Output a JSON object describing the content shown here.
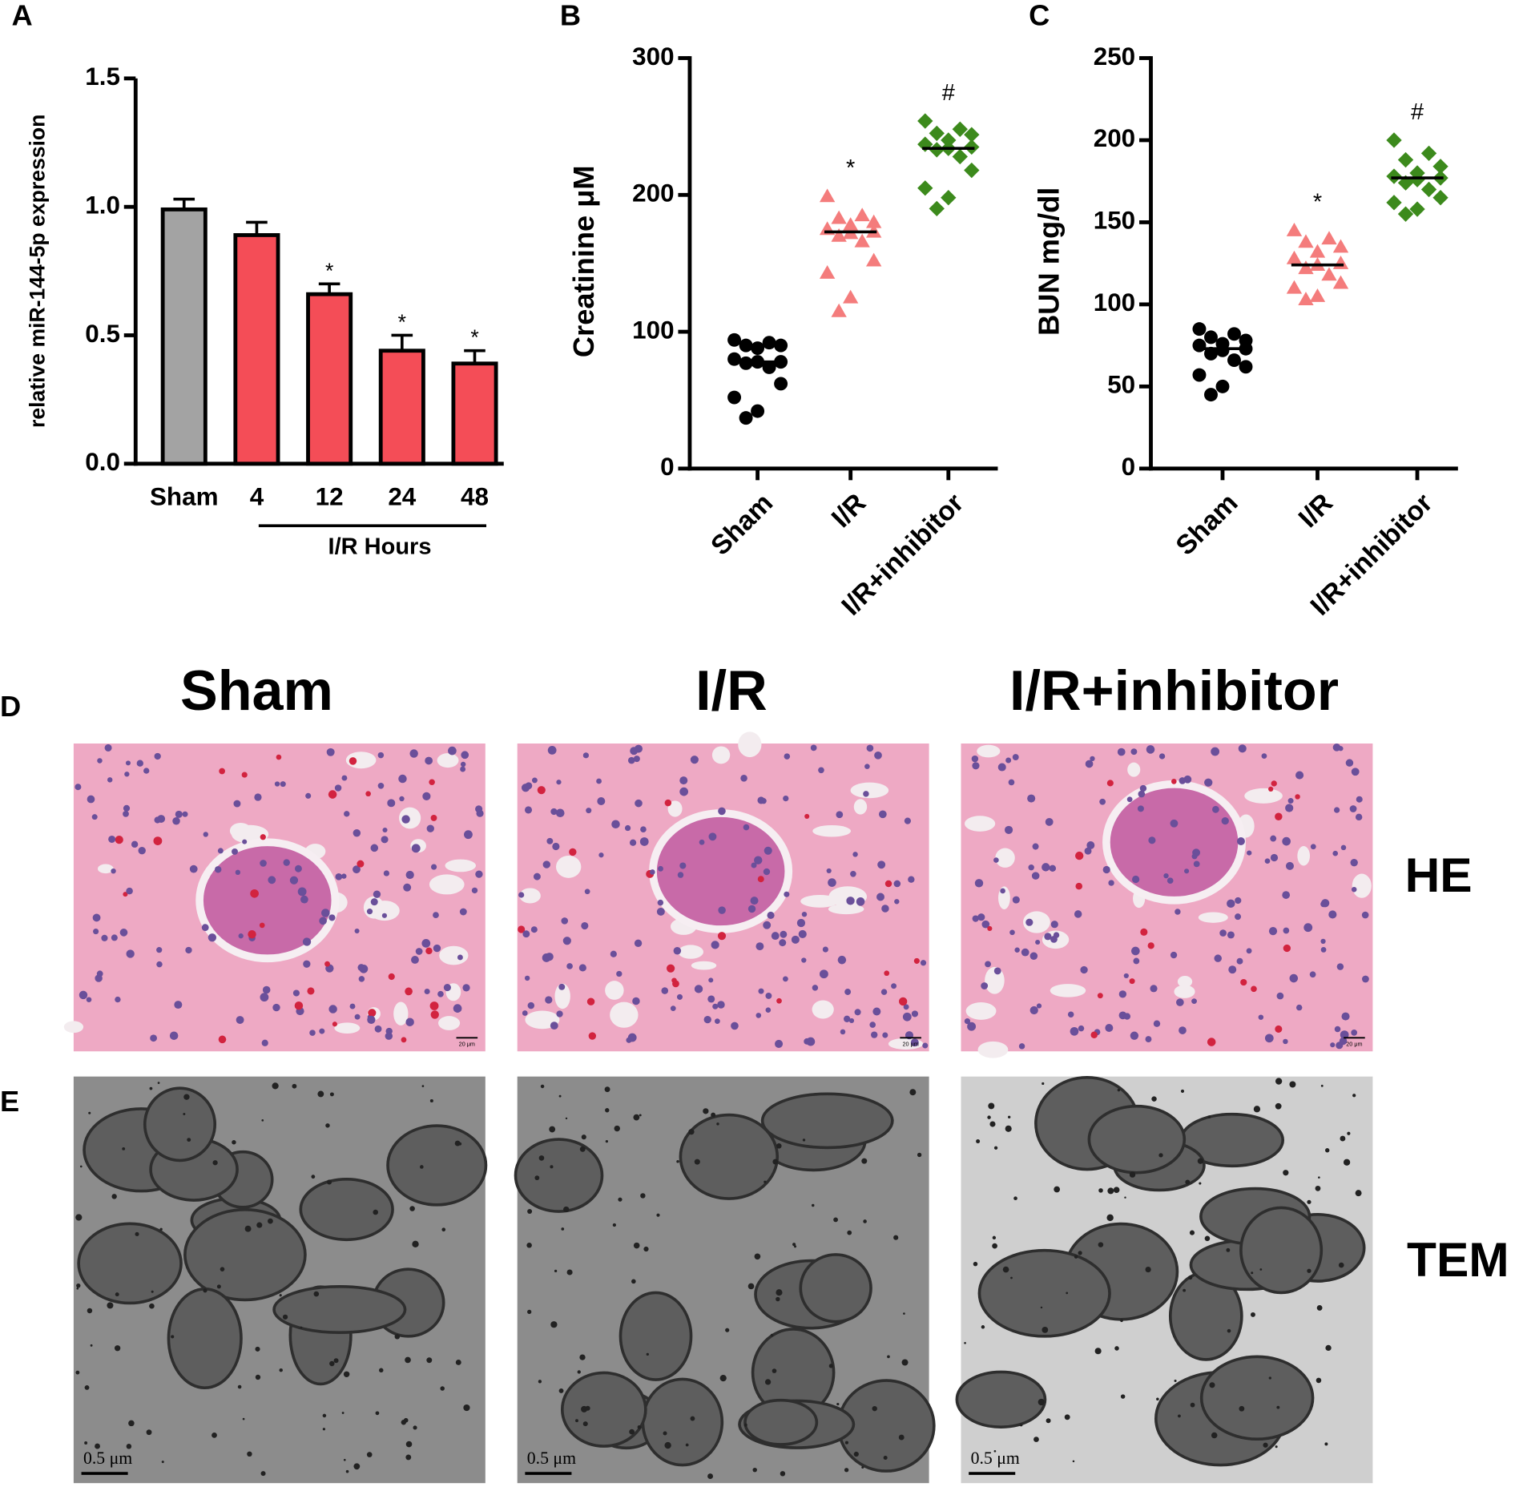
{
  "chart_data": [
    {
      "type": "bar",
      "ylabel": "relative miR-144-5p expression",
      "categories": [
        "Sham",
        "4",
        "12",
        "24",
        "48"
      ],
      "group_label": "I/R Hours",
      "values": [
        0.99,
        0.89,
        0.66,
        0.44,
        0.39
      ],
      "errors": [
        0.04,
        0.05,
        0.04,
        0.06,
        0.05
      ],
      "colors": [
        "#a3a3a3",
        "#f44d57",
        "#f44d57",
        "#f44d57",
        "#f44d57"
      ],
      "annotations": [
        null,
        null,
        "*",
        "*",
        "*"
      ],
      "ylim": [
        0,
        1.5
      ],
      "yticks": [
        {
          "value": 0,
          "label": "0.0"
        },
        {
          "value": 0.5,
          "label": "0.5"
        },
        {
          "value": 1,
          "label": "1.0"
        },
        {
          "value": 1.5,
          "label": "1.5"
        }
      ]
    },
    {
      "type": "strip",
      "ylabel": "Creatinine μM",
      "categories": [
        "Sham",
        "I/R",
        "I/R+inhibitor"
      ],
      "groups": [
        {
          "color": "#000000",
          "marker": "circle",
          "median": 78,
          "values": [
            94,
            92,
            90,
            90,
            88,
            80,
            78,
            78,
            77,
            74,
            62,
            52,
            42,
            37
          ]
        },
        {
          "color": "#f47c7c",
          "marker": "triangle",
          "median": 173,
          "values": [
            199,
            185,
            183,
            180,
            178,
            175,
            173,
            172,
            170,
            166,
            152,
            143,
            125,
            115
          ]
        },
        {
          "color": "#3c8a1c",
          "marker": "diamond",
          "median": 234,
          "values": [
            254,
            248,
            245,
            244,
            240,
            237,
            235,
            234,
            233,
            228,
            218,
            205,
            198,
            190
          ]
        }
      ],
      "annotations": [
        null,
        "*",
        "#"
      ],
      "ylim": [
        0,
        300
      ],
      "yticks": [
        0,
        100,
        200,
        300
      ]
    },
    {
      "type": "strip",
      "ylabel": "BUN mg/dl",
      "categories": [
        "Sham",
        "I/R",
        "I/R+inhibitor"
      ],
      "groups": [
        {
          "color": "#000000",
          "marker": "circle",
          "median": 73,
          "values": [
            85,
            82,
            80,
            78,
            76,
            75,
            73,
            72,
            70,
            66,
            62,
            57,
            50,
            45
          ]
        },
        {
          "color": "#f47c7c",
          "marker": "triangle",
          "median": 124,
          "values": [
            145,
            140,
            138,
            135,
            132,
            128,
            125,
            124,
            122,
            118,
            113,
            110,
            105,
            103
          ]
        },
        {
          "color": "#3c8a1c",
          "marker": "diamond",
          "median": 177,
          "values": [
            200,
            192,
            188,
            184,
            180,
            178,
            177,
            176,
            174,
            170,
            165,
            162,
            158,
            155
          ]
        }
      ],
      "annotations": [
        null,
        "*",
        "#"
      ],
      "ylim": [
        0,
        250
      ],
      "yticks": [
        0,
        50,
        100,
        150,
        200,
        250
      ]
    }
  ],
  "figure": {
    "panel_labels": [
      "A",
      "B",
      "C",
      "D",
      "E"
    ],
    "columns": [
      "Sham",
      "I/R",
      "I/R+inhibitor"
    ],
    "rows": [
      "HE",
      "TEM"
    ],
    "he_scale_bar": "20 μm",
    "tem_scale_bar": "0.5 μm"
  }
}
